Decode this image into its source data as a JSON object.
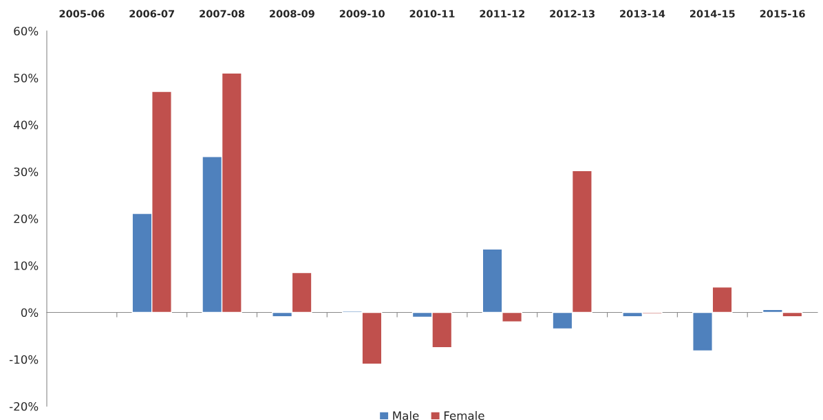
{
  "chart_data": {
    "type": "bar",
    "categories": [
      "2005-06",
      "2006-07",
      "2007-08",
      "2008-09",
      "2009-10",
      "2010-11",
      "2011-12",
      "2012-13",
      "2013-14",
      "2014-15",
      "2015-16"
    ],
    "series": [
      {
        "name": "Male",
        "color": "#4f81bd",
        "values": [
          null,
          21.1,
          33.2,
          -0.9,
          0.3,
          -1.0,
          13.5,
          -3.5,
          -0.9,
          -8.2,
          0.6
        ]
      },
      {
        "name": "Female",
        "color": "#c0504d",
        "values": [
          null,
          47.1,
          51.0,
          8.5,
          -11.0,
          -7.5,
          -2.0,
          30.2,
          -0.3,
          5.4,
          -0.9
        ]
      }
    ],
    "ylim": [
      -20,
      60
    ],
    "yticks": [
      {
        "value": -20,
        "label": "-20%"
      },
      {
        "value": -10,
        "label": "-10%"
      },
      {
        "value": 0,
        "label": "0%"
      },
      {
        "value": 10,
        "label": "10%"
      },
      {
        "value": 20,
        "label": "20%"
      },
      {
        "value": 30,
        "label": "30%"
      },
      {
        "value": 40,
        "label": "40%"
      },
      {
        "value": 50,
        "label": "50%"
      },
      {
        "value": 60,
        "label": "60%"
      }
    ],
    "legend": "bottom"
  }
}
